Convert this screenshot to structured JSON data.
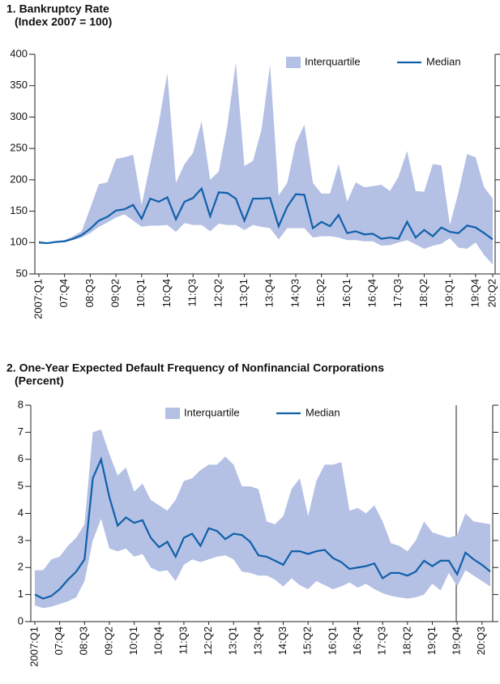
{
  "chart_data": [
    {
      "type": "line",
      "title": "1. Bankruptcy Rate",
      "subtitle": "(Index 2007 = 100)",
      "legend": "upper right",
      "categories": [
        "2007:Q1",
        null,
        null,
        "07:Q4",
        null,
        null,
        "08:Q3",
        null,
        null,
        "09:Q2",
        null,
        null,
        "10:Q1",
        null,
        null,
        "10:Q4",
        null,
        null,
        "11:Q3",
        null,
        null,
        "12:Q2",
        null,
        null,
        "13:Q1",
        null,
        null,
        "13:Q4",
        null,
        null,
        "14:Q3",
        null,
        null,
        "15:Q2",
        null,
        null,
        "16:Q1",
        null,
        null,
        "16:Q4",
        null,
        null,
        "17:Q3",
        null,
        null,
        "18:Q2",
        null,
        null,
        "19:Q1",
        null,
        null,
        "19:Q4",
        null,
        "20:Q2"
      ],
      "ylim": [
        50,
        400
      ],
      "yticks": [
        50,
        100,
        150,
        200,
        250,
        300,
        350,
        400
      ],
      "series": [
        {
          "name": "Interquartile",
          "color": "#b4c0e4",
          "high": [
            103,
            100,
            102,
            104,
            110,
            118,
            155,
            193,
            196,
            233,
            236,
            240,
            160,
            225,
            290,
            370,
            195,
            225,
            243,
            293,
            200,
            213,
            285,
            387,
            222,
            230,
            280,
            383,
            175,
            195,
            258,
            288,
            195,
            178,
            178,
            225,
            165,
            196,
            188,
            190,
            192,
            182,
            205,
            246,
            182,
            181,
            225,
            223,
            128,
            180,
            241,
            236,
            188,
            170
          ],
          "low": [
            99,
            98,
            100,
            101,
            104,
            108,
            115,
            125,
            132,
            140,
            145,
            135,
            125,
            127,
            127,
            128,
            117,
            131,
            128,
            128,
            118,
            130,
            128,
            128,
            120,
            128,
            125,
            123,
            105,
            123,
            123,
            123,
            108,
            110,
            110,
            108,
            104,
            104,
            102,
            102,
            95,
            96,
            100,
            104,
            97,
            90,
            95,
            98,
            107,
            92,
            90,
            100,
            80,
            65
          ]
        },
        {
          "name": "Median",
          "color": "#1060aa",
          "values": [
            100,
            99,
            101,
            102,
            106,
            112,
            122,
            135,
            141,
            151,
            153,
            160,
            138,
            170,
            165,
            172,
            137,
            165,
            171,
            186,
            142,
            180,
            179,
            170,
            135,
            170,
            170,
            171,
            126,
            157,
            177,
            176,
            123,
            133,
            126,
            144,
            115,
            118,
            113,
            114,
            106,
            108,
            106,
            133,
            108,
            120,
            110,
            124,
            117,
            115,
            127,
            124,
            115,
            105
          ]
        }
      ]
    },
    {
      "type": "line",
      "title": "2. One-Year Expected Default Frequency of Nonfinancial Corporations",
      "subtitle": "(Percent)",
      "legend": "upper center",
      "categories": [
        "2007:Q1",
        null,
        null,
        "07:Q4",
        null,
        null,
        "08:Q3",
        null,
        null,
        "09:Q2",
        null,
        null,
        "10:Q1",
        null,
        null,
        "10:Q4",
        null,
        null,
        "11:Q3",
        null,
        null,
        "12:Q2",
        null,
        null,
        "13:Q1",
        null,
        null,
        "13:Q4",
        null,
        null,
        "14:Q3",
        null,
        null,
        "15:Q2",
        null,
        null,
        "16:Q1",
        null,
        null,
        "16:Q4",
        null,
        null,
        "17:Q3",
        null,
        null,
        "18:Q2",
        null,
        null,
        "19:Q1",
        null,
        null,
        "19:Q4",
        null,
        null,
        "20:Q3",
        null
      ],
      "ylim": [
        0,
        8
      ],
      "yticks": [
        0,
        1,
        2,
        3,
        4,
        5,
        6,
        7,
        8
      ],
      "series": [
        {
          "name": "Interquartile",
          "color": "#b4c0e4",
          "high": [
            1.9,
            1.9,
            2.3,
            2.4,
            2.8,
            3.1,
            3.6,
            7,
            7.1,
            6.2,
            5.4,
            5.7,
            4.8,
            5.1,
            4.5,
            4.3,
            4.1,
            4.5,
            5.2,
            5.3,
            5.6,
            5.8,
            5.8,
            6.1,
            5.8,
            5,
            5,
            4.9,
            3.7,
            3.6,
            3.9,
            4.9,
            5.3,
            3.9,
            5.2,
            5.8,
            5.8,
            5.9,
            4.1,
            4.2,
            4,
            4.3,
            3.7,
            2.9,
            2.8,
            2.6,
            3,
            3.7,
            3.3,
            3.2,
            3.1,
            3.2,
            4,
            3.7,
            3.65,
            3.6
          ],
          "low": [
            0.6,
            0.5,
            0.55,
            0.65,
            0.75,
            0.9,
            1.5,
            3,
            3.8,
            2.7,
            2.6,
            2.7,
            2.4,
            2.5,
            2,
            1.85,
            1.9,
            1.5,
            2.1,
            2.3,
            2.2,
            2.3,
            2.4,
            2.45,
            2.3,
            1.85,
            1.8,
            1.7,
            1.7,
            1.55,
            1.3,
            1.6,
            1.35,
            1.2,
            1.5,
            1.35,
            1.2,
            1.3,
            1.45,
            1.25,
            1.4,
            1.2,
            1.05,
            0.95,
            0.9,
            0.85,
            0.9,
            1,
            1.4,
            1.15,
            1.8,
            1.3,
            1.9,
            1.7,
            1.5,
            1.3
          ]
        },
        {
          "name": "Median",
          "color": "#1060aa",
          "values": [
            1,
            0.85,
            0.95,
            1.2,
            1.55,
            1.85,
            2.3,
            5.3,
            6,
            4.6,
            3.55,
            3.85,
            3.65,
            3.75,
            3.1,
            2.75,
            2.95,
            2.4,
            3.1,
            3.25,
            2.8,
            3.45,
            3.35,
            3.05,
            3.25,
            3.2,
            2.95,
            2.45,
            2.4,
            2.25,
            2.1,
            2.6,
            2.6,
            2.5,
            2.6,
            2.65,
            2.35,
            2.2,
            1.95,
            2,
            2.05,
            2.15,
            1.6,
            1.8,
            1.8,
            1.7,
            1.85,
            2.25,
            2.05,
            2.25,
            2.25,
            1.75,
            2.55,
            2.3,
            2.1,
            1.85
          ]
        }
      ]
    }
  ]
}
